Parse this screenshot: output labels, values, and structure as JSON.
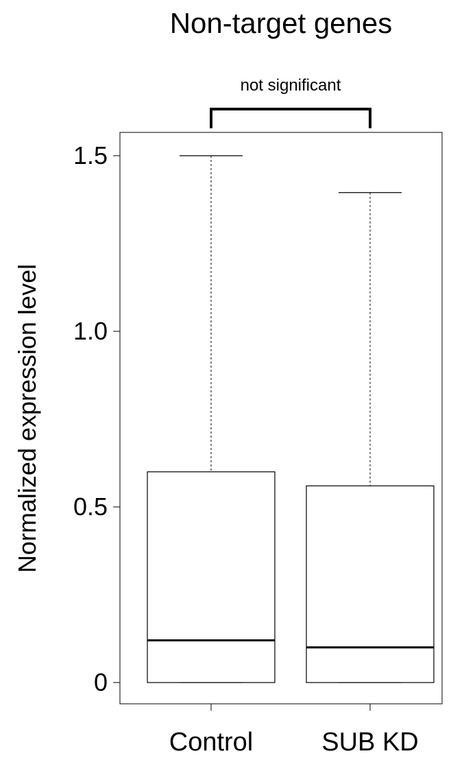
{
  "chart_data": {
    "type": "box",
    "title": "Non-target genes",
    "xlabel": "",
    "ylabel": "Normalized expression level",
    "categories": [
      "Control",
      "SUB KD"
    ],
    "ylim": [
      -0.06,
      1.6
    ],
    "yticks": [
      0,
      0.5,
      1.0,
      1.5
    ],
    "ytick_labels": [
      "0",
      "0.5",
      "1.0",
      "1.5"
    ],
    "grid": false,
    "boxes": [
      {
        "category": "Control",
        "whisker_low": 0,
        "q1": 0,
        "median": 0.12,
        "q3": 0.6,
        "whisker_high": 1.5
      },
      {
        "category": "SUB KD",
        "whisker_low": 0,
        "q1": 0,
        "median": 0.1,
        "q3": 0.56,
        "whisker_high": 1.395
      }
    ],
    "annotation": "not significant",
    "colors": {
      "box_fill": "#ffffff",
      "stroke": "#000000"
    }
  }
}
